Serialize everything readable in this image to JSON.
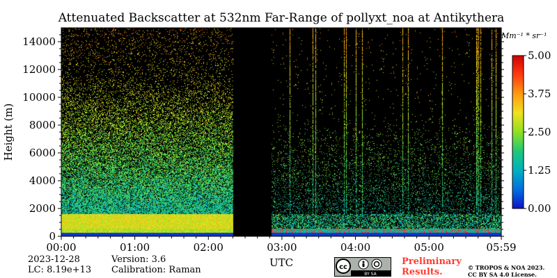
{
  "chart_data": {
    "type": "heatmap",
    "title": "Attenuated Backscatter at 532nm Far-Range of pollyxt_noa at Antikythera",
    "xlabel": "UTC",
    "ylabel": "Height (m)",
    "x_ticks": [
      "00:00",
      "01:00",
      "02:00",
      "03:00",
      "04:00",
      "05:00",
      "05:59"
    ],
    "x_tick_hours": [
      0,
      1,
      2,
      3,
      4,
      5,
      5.983
    ],
    "xlim_hours": [
      0,
      5.983
    ],
    "y_ticks": [
      0,
      2000,
      4000,
      6000,
      8000,
      10000,
      12000,
      14000
    ],
    "ylim": [
      0,
      15000
    ],
    "no_data_gap_hours": [
      2.33,
      2.85
    ],
    "colorbar": {
      "unit": "Mm⁻¹ * sr⁻¹",
      "ticks": [
        "0.00",
        "1.25",
        "2.50",
        "3.75",
        "5.00"
      ],
      "tick_values": [
        0,
        1.25,
        2.5,
        3.75,
        5.0
      ],
      "range": [
        0,
        5
      ],
      "colormap": [
        "#1010c8",
        "#0070e0",
        "#00b0c0",
        "#20c878",
        "#90e020",
        "#f0e020",
        "#ff9a10",
        "#ff3a10",
        "#d00000"
      ]
    }
  },
  "footer": {
    "date": "2023-12-28",
    "lc": "LC: 8.19e+13",
    "version": "Version: 3.6",
    "calibration": "Calibration: Raman",
    "preliminary_line1": "Preliminary",
    "preliminary_line2": "Results.",
    "copyright_line1": "© TROPOS & NOA 2023.",
    "copyright_line2": "CC BY SA 4.0 License.",
    "license_badge": "BY  SA"
  }
}
